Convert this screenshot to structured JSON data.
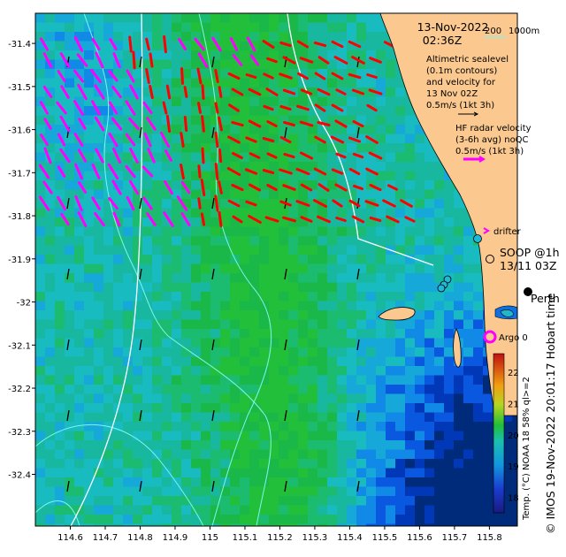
{
  "map": {
    "time_title": "13-Nov-2022",
    "time_sub": "02:36Z",
    "scale_label_200": "200",
    "scale_label_1000": "1000m",
    "alt_note_lines": [
      "Altimetric sealevel",
      "(0.1m contours)",
      "and velocity for",
      "13 Nov 02Z",
      "0.5m/s (1kt 3h)"
    ],
    "hf_note_lines": [
      "HF radar velocity",
      "(3-6h avg) noQC",
      "0.5m/s (1kt 3h)"
    ],
    "drifter_label": "drifter",
    "soop_lines": [
      "SOOP @1h",
      "13/11 03Z"
    ],
    "city_label": "Perth",
    "argo_label": "Argo 0",
    "colorbar_label": "Temp. (°C) NOAA 18 58% ql>=2",
    "colorbar_ticks": [
      "18",
      "19",
      "20",
      "21",
      "22"
    ],
    "credit": "© IMOS 19-Nov-2022 20:01:17 Hobart time",
    "x_ticks": [
      "114.6",
      "114.7",
      "114.8",
      "114.9",
      "115",
      "115.1",
      "115.2",
      "115.3",
      "115.4",
      "115.5",
      "115.6",
      "115.7",
      "115.8"
    ],
    "y_ticks": [
      "-31.4",
      "-31.5",
      "-31.6",
      "-31.7",
      "-31.8",
      "-31.9",
      "-32",
      "-32.1",
      "-32.2",
      "-32.3",
      "-32.4"
    ],
    "extent": {
      "lon_min": 114.5,
      "lon_max": 115.88,
      "lat_min": -32.52,
      "lat_max": -31.33
    },
    "colors": {
      "land": "#fbc98f",
      "hf_vectors": "#ff00ff",
      "alt_vectors": "#ff0000",
      "contours": "#7ff5f0",
      "argo": "#ff00ff",
      "sst_cold": "#002080",
      "sst_warm": "#18b838"
    }
  }
}
